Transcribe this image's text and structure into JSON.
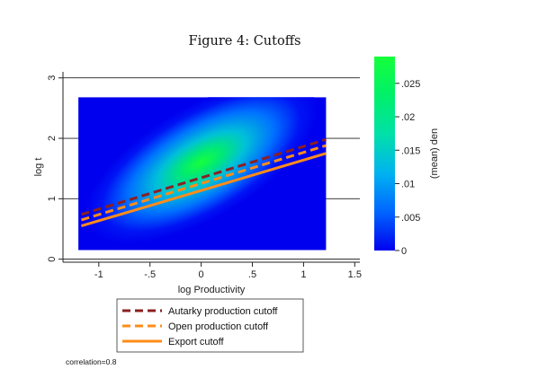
{
  "chart_data": {
    "type": "heatmap",
    "title": "Figure 4: Cutoffs",
    "xlabel": "log Productivity",
    "ylabel": "log t",
    "xlim": [
      -1.35,
      1.55
    ],
    "ylim": [
      -0.05,
      3.1
    ],
    "x_ticks": [
      "-1",
      "-.5",
      "0",
      ".5",
      "1",
      "1.5"
    ],
    "x_tick_values": [
      -1,
      -0.5,
      0,
      0.5,
      1,
      1.5
    ],
    "y_ticks": [
      "0",
      "1",
      "2",
      "3"
    ],
    "y_tick_values": [
      0,
      1,
      2,
      3
    ],
    "grid": "horizontal",
    "density": {
      "label": "(mean) den",
      "x_range": [
        -1.2,
        1.22
      ],
      "y_range": [
        0.15,
        2.68
      ],
      "peak": [
        0.0,
        1.6
      ],
      "max": 0.029
    },
    "colorbar": {
      "label": "(mean) den",
      "ticks": [
        "0",
        ".005",
        ".01",
        ".015",
        ".02",
        ".025"
      ],
      "tick_values": [
        0,
        0.005,
        0.01,
        0.015,
        0.02,
        0.025
      ],
      "range": [
        0,
        0.029
      ],
      "colors": [
        "#0000ee",
        "#0066ff",
        "#00b3f0",
        "#00e0a8",
        "#00f06a",
        "#16ff3a"
      ]
    },
    "series": [
      {
        "name": "Autarky production cutoff",
        "style": "dashed",
        "color": "#8b2020",
        "x": [
          -1.17,
          1.22
        ],
        "y": [
          0.74,
          1.98
        ]
      },
      {
        "name": "Open production cutoff",
        "style": "dashed",
        "color": "#ff8c1a",
        "x": [
          -1.17,
          1.22
        ],
        "y": [
          0.65,
          1.88
        ]
      },
      {
        "name": "Export cutoff",
        "style": "solid",
        "color": "#ff8c1a",
        "x": [
          -1.17,
          1.22
        ],
        "y": [
          0.55,
          1.75
        ]
      }
    ],
    "legend_position": "bottom",
    "annotation": "correlation=0.8"
  }
}
